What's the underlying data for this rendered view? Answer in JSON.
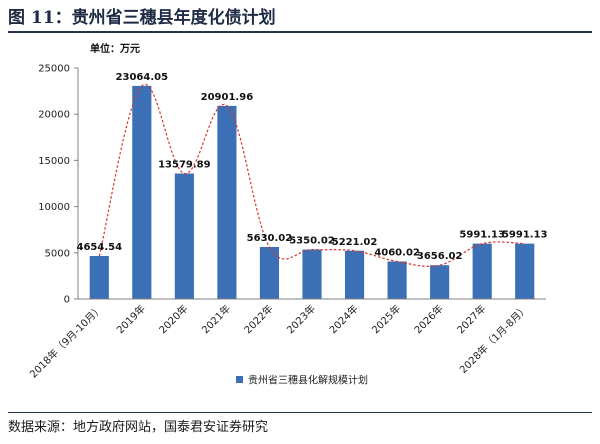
{
  "figure": {
    "title": "图 11：贵州省三穗县年度化债计划",
    "source": "数据来源：地方政府网站，国泰君安证券研究"
  },
  "colors": {
    "bar": "#3b6fb6",
    "trend": "#d9342b",
    "axis": "#808080",
    "rule": "#24344f"
  },
  "chart_data": {
    "type": "bar",
    "unit_label": "单位：万元",
    "categories": [
      "2018年（9月-10月）",
      "2019年",
      "2020年",
      "2021年",
      "2022年",
      "2023年",
      "2024年",
      "2025年",
      "2026年",
      "2027年",
      "2028年（1月-8月）"
    ],
    "series": [
      {
        "name": "贵州省三穗县化解规模计划",
        "values": [
          4654.54,
          23064.05,
          13579.89,
          20901.96,
          5630.02,
          5350.02,
          5221.02,
          4060.02,
          3656.02,
          5991.13,
          5991.13
        ]
      }
    ],
    "value_labels": [
      "4654.54",
      "23064.05",
      "13579.89",
      "20901.96",
      "5630.02",
      "5350.02",
      "5221.02",
      "4060.02",
      "3656.02",
      "5991.13",
      "5991.13"
    ],
    "y_ticks": [
      0,
      5000,
      10000,
      15000,
      20000,
      25000
    ],
    "y_tick_labels": [
      "0",
      "5000",
      "10000",
      "15000",
      "20000",
      "25000"
    ],
    "ylim": [
      0,
      25000
    ],
    "trendline": "polynomial",
    "grid": false,
    "legend_position": "bottom"
  }
}
